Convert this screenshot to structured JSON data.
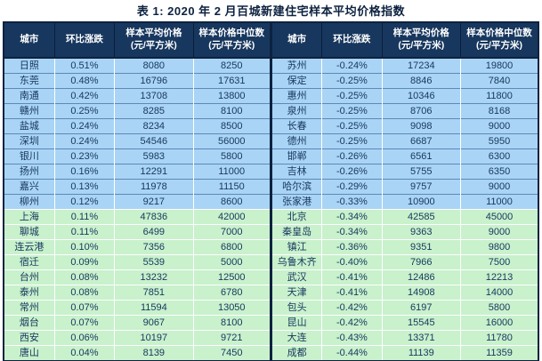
{
  "title": "表 1: 2020 年 2 月百城新建住宅样本平均价格指数",
  "ui": {
    "colors": {
      "header_bg": "#17375E",
      "header_text": "#FFFFFF",
      "row_blue_bg": "#A9D4F5",
      "row_green_bg": "#C8F1CC",
      "cell_text": "#17375E",
      "border_dark": "#0D2240",
      "blue_row_divider": "#5F87B8",
      "title_text": "#0D2240"
    },
    "row_group_note": "rows 1-10 of each half are light blue, rows 11-20 are light green"
  },
  "chart_data": {
    "type": "table",
    "title": "表 1: 2020 年 2 月百城新建住宅样本平均价格指数",
    "columns": [
      "城市",
      "环比涨跌",
      "样本平均价格\n(元/平方米)",
      "样本价格中位数\n(元/平方米)"
    ],
    "left_rows": [
      [
        "日照",
        "0.51%",
        "8080",
        "8250"
      ],
      [
        "东莞",
        "0.48%",
        "16796",
        "17631"
      ],
      [
        "南通",
        "0.42%",
        "13708",
        "13800"
      ],
      [
        "赣州",
        "0.25%",
        "8285",
        "8100"
      ],
      [
        "盐城",
        "0.24%",
        "8234",
        "8500"
      ],
      [
        "深圳",
        "0.24%",
        "54546",
        "56000"
      ],
      [
        "银川",
        "0.23%",
        "5983",
        "5800"
      ],
      [
        "扬州",
        "0.16%",
        "12291",
        "11000"
      ],
      [
        "嘉兴",
        "0.13%",
        "11978",
        "11150"
      ],
      [
        "柳州",
        "0.12%",
        "9217",
        "8600"
      ],
      [
        "上海",
        "0.11%",
        "47836",
        "42000"
      ],
      [
        "聊城",
        "0.11%",
        "6499",
        "7000"
      ],
      [
        "连云港",
        "0.10%",
        "7356",
        "6800"
      ],
      [
        "宿迁",
        "0.09%",
        "5539",
        "5000"
      ],
      [
        "台州",
        "0.08%",
        "13232",
        "12500"
      ],
      [
        "泰州",
        "0.08%",
        "7851",
        "6780"
      ],
      [
        "常州",
        "0.07%",
        "11594",
        "13050"
      ],
      [
        "烟台",
        "0.07%",
        "9067",
        "8100"
      ],
      [
        "西安",
        "0.06%",
        "10197",
        "9721"
      ],
      [
        "唐山",
        "0.04%",
        "8139",
        "7450"
      ]
    ],
    "right_rows": [
      [
        "苏州",
        "-0.24%",
        "17234",
        "19800"
      ],
      [
        "保定",
        "-0.25%",
        "8846",
        "7840"
      ],
      [
        "惠州",
        "-0.25%",
        "10346",
        "11800"
      ],
      [
        "泉州",
        "-0.25%",
        "8706",
        "8168"
      ],
      [
        "长春",
        "-0.25%",
        "9098",
        "9000"
      ],
      [
        "德州",
        "-0.25%",
        "6687",
        "5950"
      ],
      [
        "邯郸",
        "-0.26%",
        "6561",
        "6300"
      ],
      [
        "吉林",
        "-0.26%",
        "5755",
        "6350"
      ],
      [
        "哈尔滨",
        "-0.29%",
        "9757",
        "9000"
      ],
      [
        "张家港",
        "-0.33%",
        "10900",
        "11000"
      ],
      [
        "北京",
        "-0.34%",
        "42585",
        "45000"
      ],
      [
        "秦皇岛",
        "-0.34%",
        "9363",
        "9000"
      ],
      [
        "镇江",
        "-0.36%",
        "9351",
        "9800"
      ],
      [
        "乌鲁木齐",
        "-0.40%",
        "7966",
        "7500"
      ],
      [
        "武汉",
        "-0.41%",
        "12486",
        "12213"
      ],
      [
        "天津",
        "-0.41%",
        "14908",
        "14000"
      ],
      [
        "包头",
        "-0.42%",
        "6197",
        "5800"
      ],
      [
        "昆山",
        "-0.42%",
        "15545",
        "16000"
      ],
      [
        "大连",
        "-0.43%",
        "13371",
        "11780"
      ],
      [
        "成都",
        "-0.44%",
        "11139",
        "11359"
      ]
    ]
  }
}
